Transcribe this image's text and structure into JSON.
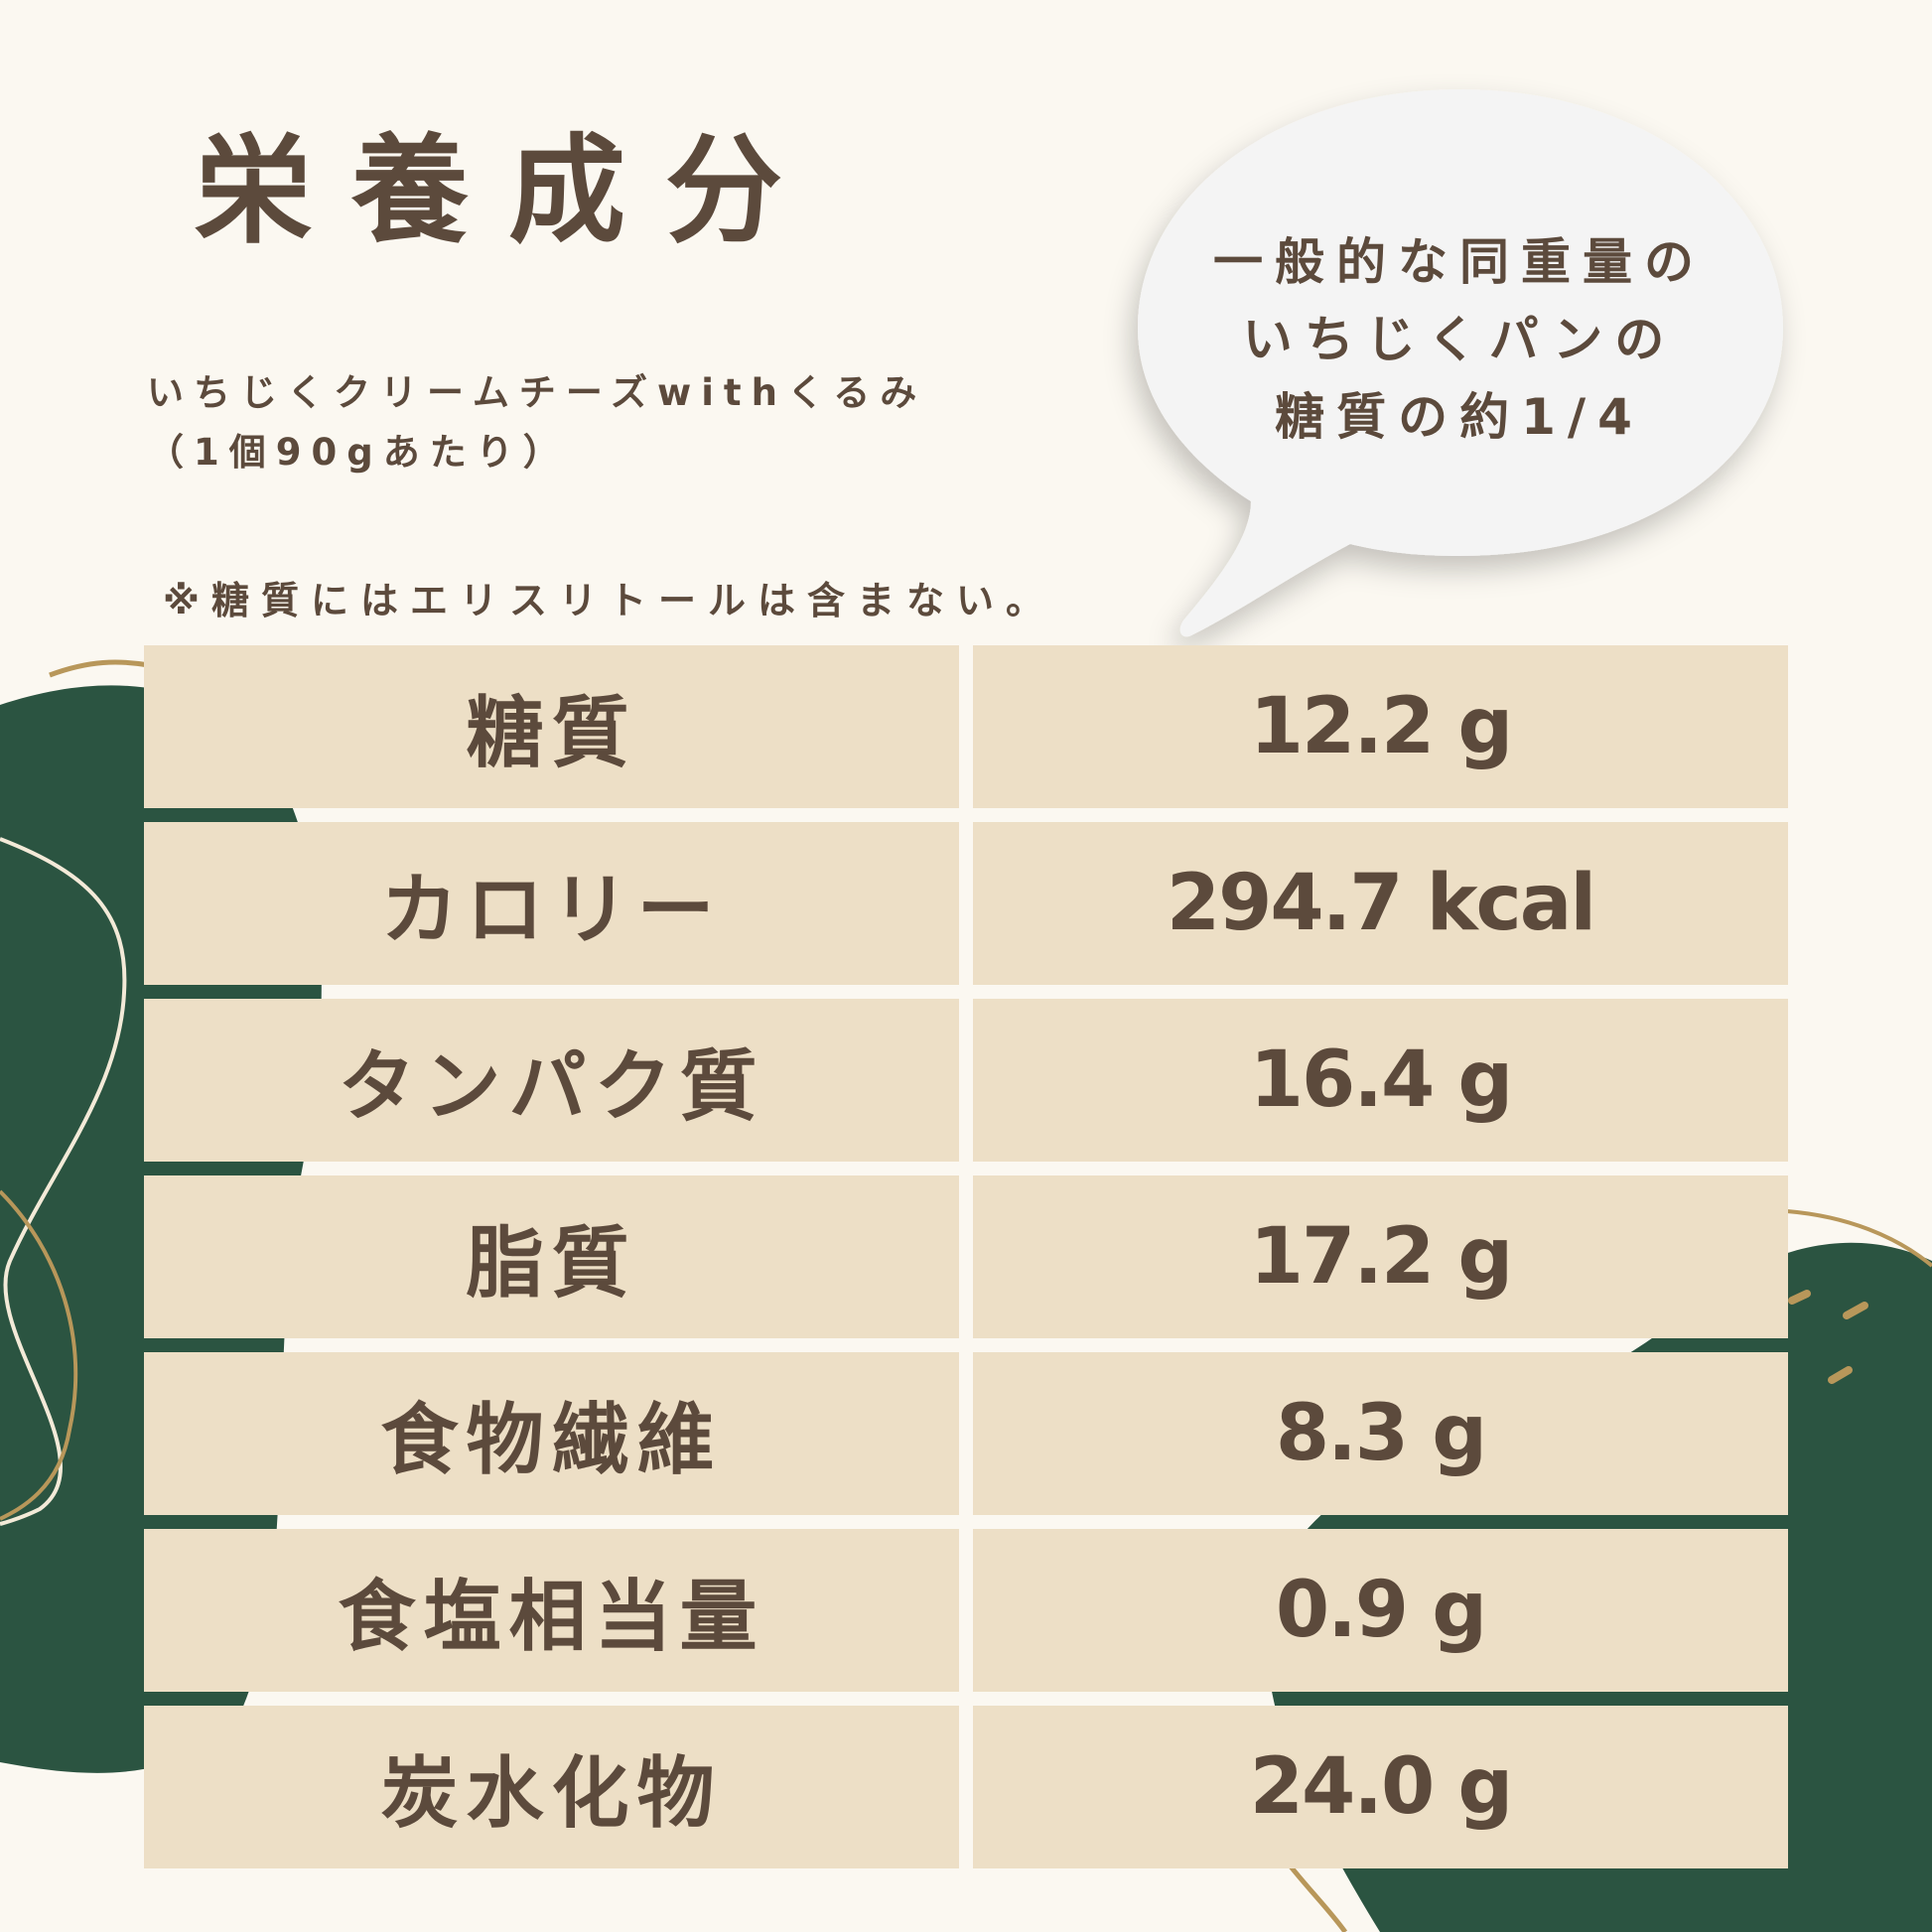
{
  "title": "栄養成分",
  "product": {
    "name": "いちじくクリームチーズwithくるみ",
    "serving": "（1個90gあたり）"
  },
  "note": "※糖質にはエリスリトールは含まない。",
  "bubble": {
    "lines": [
      "一般的な同重量の",
      "いちじくパンの",
      "糖質の約1/4"
    ]
  },
  "nutrition": [
    {
      "label": "糖質",
      "value": "12.2 g"
    },
    {
      "label": "カロリー",
      "value": "294.7 kcal"
    },
    {
      "label": "タンパク質",
      "value": "16.4 g"
    },
    {
      "label": "脂質",
      "value": "17.2 g"
    },
    {
      "label": "食物繊維",
      "value": "8.3 g"
    },
    {
      "label": "食塩相当量",
      "value": "0.9 g"
    },
    {
      "label": "炭水化物",
      "value": "24.0 g"
    }
  ],
  "colors": {
    "background": "#fbf8f1",
    "green": "#2b5441",
    "cell": "#eddfc6",
    "text": "#5c4a3c",
    "gold": "#b8975a"
  }
}
